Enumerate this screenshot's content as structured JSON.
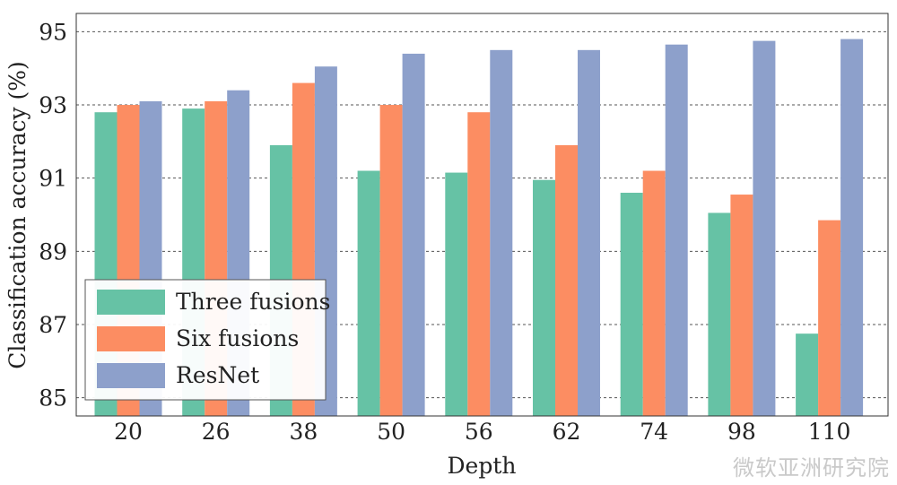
{
  "chart_data": {
    "type": "bar",
    "title": "",
    "xlabel": "Depth",
    "ylabel": "Classification accuracy (%)",
    "categories": [
      "20",
      "26",
      "38",
      "50",
      "56",
      "62",
      "74",
      "98",
      "110"
    ],
    "ylim": [
      84.5,
      95.5
    ],
    "yticks": [
      "85",
      "87",
      "89",
      "91",
      "93",
      "95"
    ],
    "grid": "horizontal dashed",
    "legend_position": "lower-left",
    "series": [
      {
        "name": "Three fusions",
        "color": "#66c2a5",
        "values": [
          92.8,
          92.9,
          91.9,
          91.2,
          91.15,
          90.95,
          90.6,
          90.05,
          86.75
        ]
      },
      {
        "name": "Six fusions",
        "color": "#fc8d62",
        "values": [
          93.0,
          93.1,
          93.6,
          93.0,
          92.8,
          91.9,
          91.2,
          90.55,
          89.85
        ]
      },
      {
        "name": "ResNet",
        "color": "#8da0cb",
        "values": [
          93.1,
          93.4,
          94.05,
          94.4,
          94.5,
          94.5,
          94.65,
          94.75,
          94.8
        ]
      }
    ]
  },
  "watermark": "微软亚洲研究院"
}
